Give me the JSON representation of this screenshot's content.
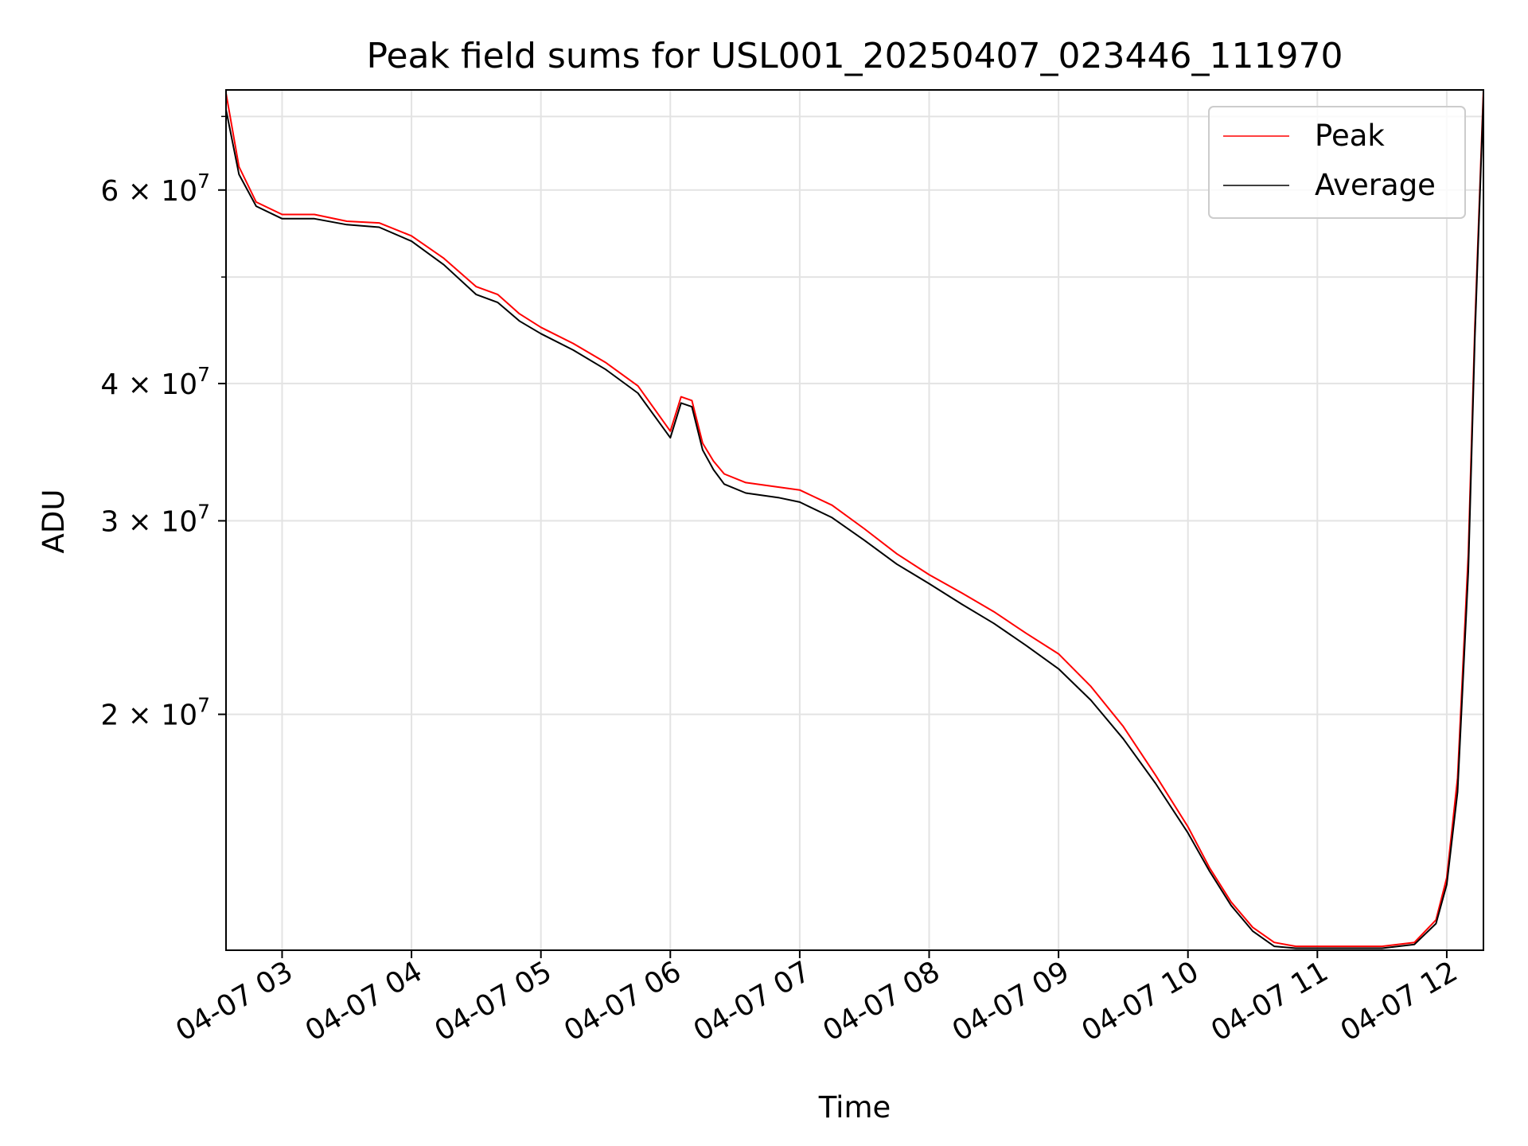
{
  "chart_data": {
    "type": "line",
    "title": "Peak field sums for USL001_20250407_023446_111970",
    "xlabel": "Time",
    "ylabel": "ADU",
    "x_axis": {
      "kind": "datetime",
      "range": [
        "2025-04-07 02:34",
        "2025-04-07 12:17"
      ],
      "ticks": [
        "04-07 03",
        "04-07 04",
        "04-07 05",
        "04-07 06",
        "04-07 07",
        "04-07 08",
        "04-07 09",
        "04-07 10",
        "04-07 11",
        "04-07 12"
      ],
      "tick_label_rotation_deg": 30
    },
    "y_axis": {
      "scale": "log",
      "range": [
        12200000,
        74000000
      ],
      "ticks": [
        {
          "value": 20000000,
          "mantissa": "2",
          "exp": "7"
        },
        {
          "value": 30000000,
          "mantissa": "3",
          "exp": "7"
        },
        {
          "value": 40000000,
          "mantissa": "4",
          "exp": "7"
        },
        {
          "value": 60000000,
          "mantissa": "6",
          "exp": "7"
        }
      ],
      "minor_ticks": [
        50000000,
        70000000
      ]
    },
    "grid": true,
    "legend": "top-right",
    "series": [
      {
        "name": "Peak",
        "color": "#ff0000",
        "x": [
          "02:34",
          "02:40",
          "02:48",
          "03:00",
          "03:15",
          "03:30",
          "03:45",
          "04:00",
          "04:15",
          "04:30",
          "04:40",
          "04:50",
          "05:00",
          "05:15",
          "05:30",
          "05:45",
          "06:00",
          "06:05",
          "06:10",
          "06:15",
          "06:20",
          "06:25",
          "06:35",
          "06:50",
          "07:00",
          "07:15",
          "07:30",
          "07:45",
          "08:00",
          "08:15",
          "08:30",
          "08:45",
          "09:00",
          "09:15",
          "09:30",
          "09:45",
          "10:00",
          "10:10",
          "10:20",
          "10:30",
          "10:40",
          "10:50",
          "11:00",
          "11:15",
          "11:30",
          "11:45",
          "11:55",
          "12:00",
          "12:05",
          "12:10",
          "12:13",
          "12:17"
        ],
        "y": [
          73500000,
          63000000,
          58500000,
          57000000,
          57000000,
          56200000,
          56000000,
          54500000,
          52000000,
          49000000,
          48200000,
          46300000,
          45000000,
          43500000,
          41800000,
          39800000,
          36200000,
          38900000,
          38600000,
          35300000,
          34000000,
          33100000,
          32500000,
          32200000,
          32000000,
          31000000,
          29500000,
          28000000,
          26800000,
          25800000,
          24800000,
          23700000,
          22700000,
          21200000,
          19500000,
          17600000,
          15800000,
          14500000,
          13500000,
          12800000,
          12400000,
          12300000,
          12300000,
          12300000,
          12300000,
          12400000,
          13000000,
          14200000,
          17500000,
          28000000,
          45000000,
          74000000
        ]
      },
      {
        "name": "Average",
        "color": "#000000",
        "x": [
          "02:34",
          "02:40",
          "02:48",
          "03:00",
          "03:15",
          "03:30",
          "03:45",
          "04:00",
          "04:15",
          "04:30",
          "04:40",
          "04:50",
          "05:00",
          "05:15",
          "05:30",
          "05:45",
          "06:00",
          "06:05",
          "06:10",
          "06:15",
          "06:20",
          "06:25",
          "06:35",
          "06:50",
          "07:00",
          "07:15",
          "07:30",
          "07:45",
          "08:00",
          "08:15",
          "08:30",
          "08:45",
          "09:00",
          "09:15",
          "09:30",
          "09:45",
          "10:00",
          "10:10",
          "10:20",
          "10:30",
          "10:40",
          "10:50",
          "11:00",
          "11:15",
          "11:30",
          "11:45",
          "11:55",
          "12:00",
          "12:05",
          "12:10",
          "12:13",
          "12:17"
        ],
        "y": [
          71000000,
          62000000,
          58000000,
          56500000,
          56500000,
          55800000,
          55500000,
          53900000,
          51300000,
          48200000,
          47400000,
          45600000,
          44400000,
          42900000,
          41200000,
          39200000,
          35700000,
          38400000,
          38100000,
          34800000,
          33400000,
          32400000,
          31800000,
          31500000,
          31200000,
          30200000,
          28800000,
          27400000,
          26300000,
          25200000,
          24200000,
          23100000,
          22000000,
          20600000,
          19000000,
          17300000,
          15600000,
          14400000,
          13400000,
          12700000,
          12300000,
          12250000,
          12250000,
          12250000,
          12250000,
          12350000,
          12900000,
          14000000,
          17000000,
          27000000,
          44000000,
          73000000
        ]
      }
    ]
  }
}
